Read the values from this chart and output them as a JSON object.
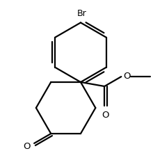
{
  "bg_color": "#ffffff",
  "line_color": "#000000",
  "line_width": 1.6,
  "fig_width": 2.2,
  "fig_height": 2.28,
  "dpi": 100,
  "xlim": [
    0,
    220
  ],
  "ylim": [
    0,
    228
  ]
}
